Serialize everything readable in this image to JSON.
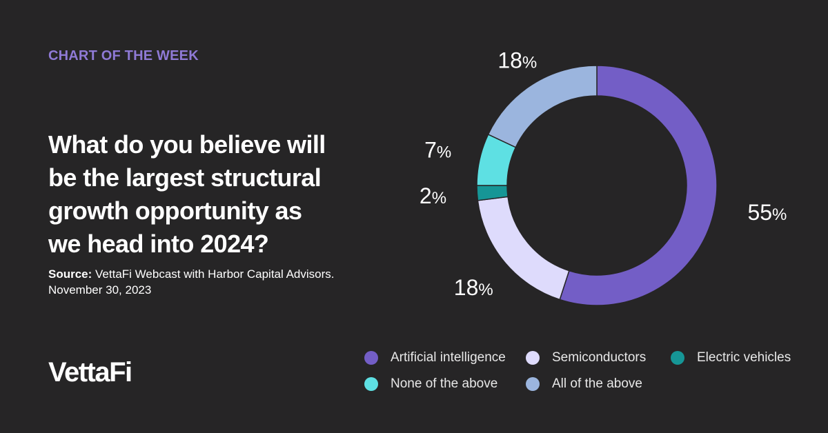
{
  "eyebrow": "CHART OF THE WEEK",
  "headline": "What do you believe will be the largest structural growth opportunity as we head into 2024?",
  "source": {
    "label": "Source:",
    "text": "VettaFi Webcast with Harbor Capital Advisors. November 30, 2023"
  },
  "logo": "VettaFi",
  "chart_data": {
    "type": "pie",
    "variant": "donut",
    "title": "What do you believe will be the largest structural growth opportunity as we head into 2024?",
    "series": [
      {
        "name": "Artificial intelligence",
        "value": 55,
        "label": "55",
        "color": "#735ec6"
      },
      {
        "name": "Semiconductors",
        "value": 18,
        "label": "18",
        "color": "#dedbfc"
      },
      {
        "name": "Electric vehicles",
        "value": 2,
        "label": "2",
        "color": "#169696"
      },
      {
        "name": "None of the above",
        "value": 7,
        "label": "7",
        "color": "#5ee0e3"
      },
      {
        "name": "All of the above",
        "value": 18,
        "label": "18",
        "color": "#9bb5de"
      }
    ],
    "unit": "%",
    "legend_position": "bottom"
  }
}
